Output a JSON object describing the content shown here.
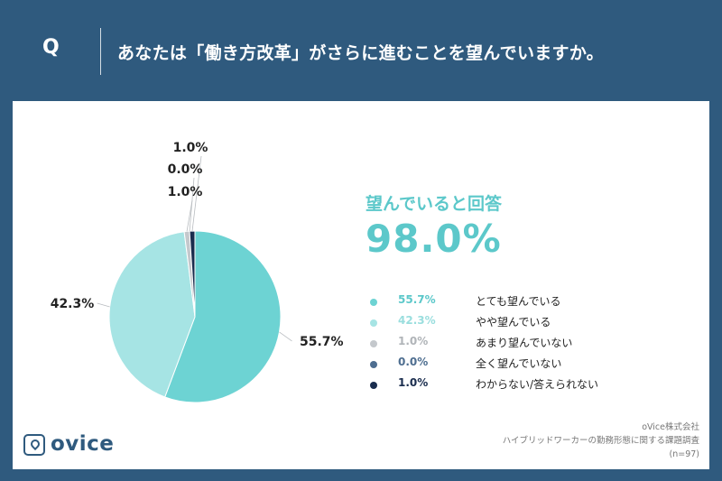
{
  "header": {
    "q_letter": "Q",
    "question": "あなたは「働き方改革」がさらに進むことを望んでいますか。"
  },
  "summary": {
    "title": "望んでいると回答",
    "value": "98.0%",
    "color": "#5cc8ca"
  },
  "chart_data": {
    "type": "pie",
    "start_angle_deg": 0,
    "direction": "clockwise",
    "slices": [
      {
        "label": "とても望んでいる",
        "value": 55.7,
        "display": "55.7%",
        "color": "#6dd3d3"
      },
      {
        "label": "やや望んでいる",
        "value": 42.3,
        "display": "42.3%",
        "color": "#a6e4e4"
      },
      {
        "label": "あまり望んでいない",
        "value": 1.0,
        "display": "1.0%",
        "color": "#c4c8cc"
      },
      {
        "label": "全く望んでいない",
        "value": 0.0,
        "display": "0.0%",
        "color": "#4e6e90"
      },
      {
        "label": "わからない/答えられない",
        "value": 1.0,
        "display": "1.0%",
        "color": "#1a2d4e"
      }
    ]
  },
  "legend": [
    {
      "pct": "55.7%",
      "label": "とても望んでいる",
      "dot_color": "#6dd3d3",
      "text_color": "#5cc8ca"
    },
    {
      "pct": "42.3%",
      "label": "やや望んでいる",
      "dot_color": "#a6e4e4",
      "text_color": "#9adede"
    },
    {
      "pct": "1.0%",
      "label": "あまり望んでいない",
      "dot_color": "#c4c8cc",
      "text_color": "#b0b4b8"
    },
    {
      "pct": "0.0%",
      "label": "全く望んでいない",
      "dot_color": "#4e6e90",
      "text_color": "#4e6e90"
    },
    {
      "pct": "1.0%",
      "label": "わからない/答えられない",
      "dot_color": "#1a2d4e",
      "text_color": "#1a2d4e"
    }
  ],
  "brand": {
    "logo_text": "ovice",
    "logo_icon": "ovice-logo-icon"
  },
  "source": {
    "company": "oVice株式会社",
    "survey": "ハイブリッドワーカーの勤務形態に関する課題調査",
    "sample": "(n=97)"
  },
  "colors": {
    "background": "#2f5a7e",
    "panel": "#ffffff"
  }
}
